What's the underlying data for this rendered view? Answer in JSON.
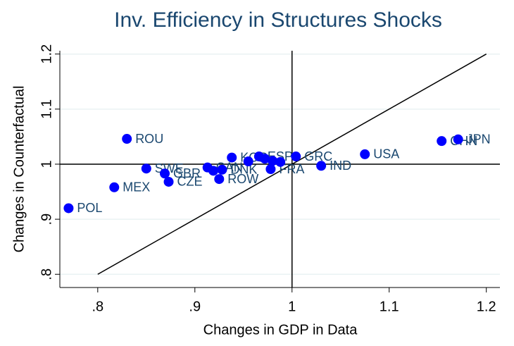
{
  "chart_data": {
    "type": "scatter",
    "title": "Inv. Efficiency in Structures Shocks",
    "x_label": "Changes in GDP in Data",
    "y_label": "Changes in Counterfactual",
    "x": [
      0.77,
      0.817,
      0.83,
      0.85,
      0.869,
      0.873,
      0.913,
      0.919,
      0.928,
      0.925,
      0.938,
      0.955,
      0.966,
      0.972,
      0.98,
      0.978,
      0.988,
      1.004,
      1.03,
      1.075,
      1.154,
      1.171
    ],
    "y": [
      0.92,
      0.958,
      1.046,
      0.992,
      0.983,
      0.968,
      0.994,
      0.988,
      0.99,
      0.973,
      1.012,
      1.005,
      1.014,
      1.01,
      1.006,
      0.991,
      1.004,
      1.014,
      0.997,
      1.018,
      1.042,
      1.045
    ],
    "labels": [
      "POL",
      "MEX",
      "ROU",
      "SWE",
      "GBR",
      "CZE",
      "CAN",
      null,
      "DNK",
      "ROW",
      "KOR",
      null,
      "ESP",
      null,
      null,
      "FRA",
      null,
      "GRC",
      "IND",
      "USA",
      "CHN",
      "JPN"
    ],
    "color": "#0000ff",
    "label_color": "#1a476f",
    "xlim": [
      0.761,
      1.214
    ],
    "ylim": [
      0.776,
      1.206
    ],
    "xticks": [
      {
        "value": 0.8,
        "label": ".8"
      },
      {
        "value": 0.9,
        "label": ".9"
      },
      1,
      1.1,
      1.2
    ],
    "yticks": [
      {
        "value": 0.8,
        "label": ".8"
      },
      {
        "value": 0.9,
        "label": ".9"
      },
      1,
      1.1,
      1.2
    ],
    "grid": true,
    "reference_x": 1,
    "reference_y": 1,
    "diagonal": [
      0.8,
      1.2
    ]
  }
}
